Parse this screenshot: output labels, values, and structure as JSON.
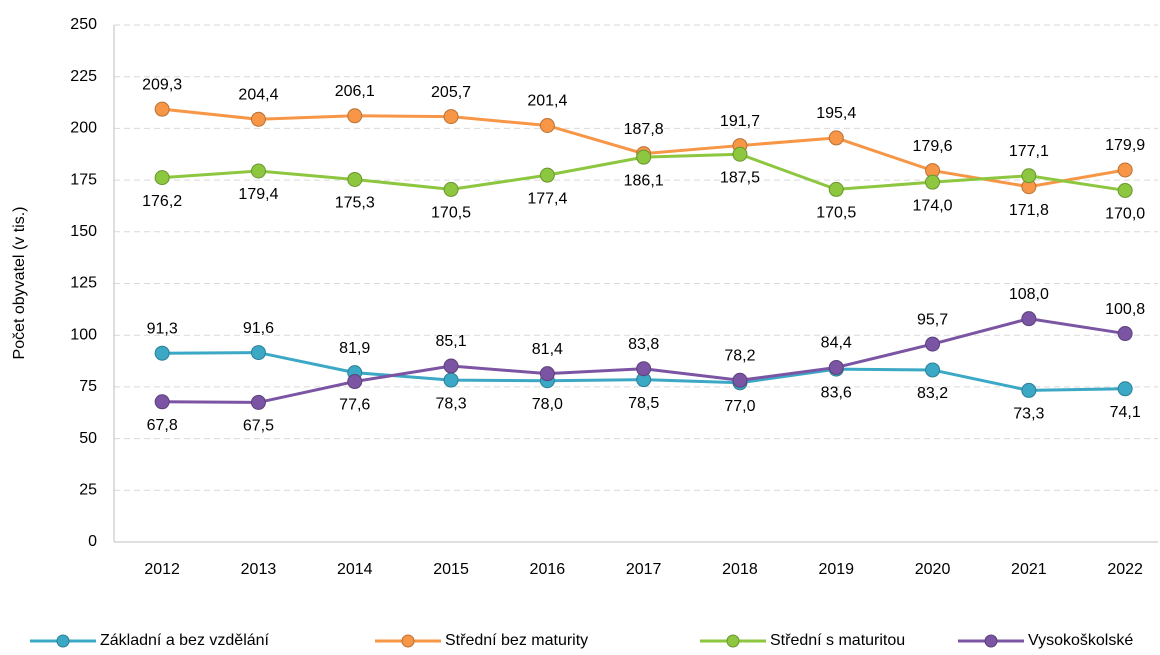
{
  "chart_data": {
    "type": "line",
    "y_label": "Počet obyvatel (v tis.)",
    "categories": [
      "2012",
      "2013",
      "2014",
      "2015",
      "2016",
      "2017",
      "2018",
      "2019",
      "2020",
      "2021",
      "2022"
    ],
    "series": [
      {
        "name": "Základní a bez vzdělání",
        "color": "#3ba8c6",
        "values": [
          91.3,
          91.6,
          81.9,
          78.3,
          78.0,
          78.5,
          77.0,
          83.6,
          83.2,
          73.3,
          74.1
        ],
        "value_labels": [
          "91,3",
          "91,6",
          "81,9",
          "78,3",
          "78,0",
          "78,5",
          "77,0",
          "83,6",
          "83,2",
          "73,3",
          "74,1"
        ]
      },
      {
        "name": "Střední bez maturity",
        "color": "#f79646",
        "values": [
          209.3,
          204.4,
          206.1,
          205.7,
          201.4,
          187.8,
          191.7,
          195.4,
          179.6,
          171.8,
          179.9
        ],
        "value_labels": [
          "209,3",
          "204,4",
          "206,1",
          "205,7",
          "201,4",
          "187,8",
          "191,7",
          "195,4",
          "179,6",
          "171,8",
          "179,9"
        ]
      },
      {
        "name": "Střední s maturitou",
        "color": "#8dc63f",
        "values": [
          176.2,
          179.4,
          175.3,
          170.5,
          177.4,
          186.1,
          187.5,
          170.5,
          174.0,
          177.1,
          170.0
        ],
        "value_labels": [
          "176,2",
          "179,4",
          "175,3",
          "170,5",
          "177,4",
          "186,1",
          "187,5",
          "170,5",
          "174,0",
          "177,1",
          "170,0"
        ]
      },
      {
        "name": "Vysokoškolské",
        "color": "#7b55a3",
        "values": [
          67.8,
          67.5,
          77.6,
          85.1,
          81.4,
          83.8,
          78.2,
          84.4,
          95.7,
          108.0,
          100.8
        ],
        "value_labels": [
          "67,8",
          "67,5",
          "77,6",
          "85,1",
          "81,4",
          "83,8",
          "78,2",
          "84,4",
          "95,7",
          "108,0",
          "100,8"
        ]
      }
    ],
    "ylim": [
      0,
      250
    ],
    "yticks": [
      0,
      25,
      50,
      75,
      100,
      125,
      150,
      175,
      200,
      225,
      250
    ],
    "grid": true,
    "legend": "bottom"
  }
}
